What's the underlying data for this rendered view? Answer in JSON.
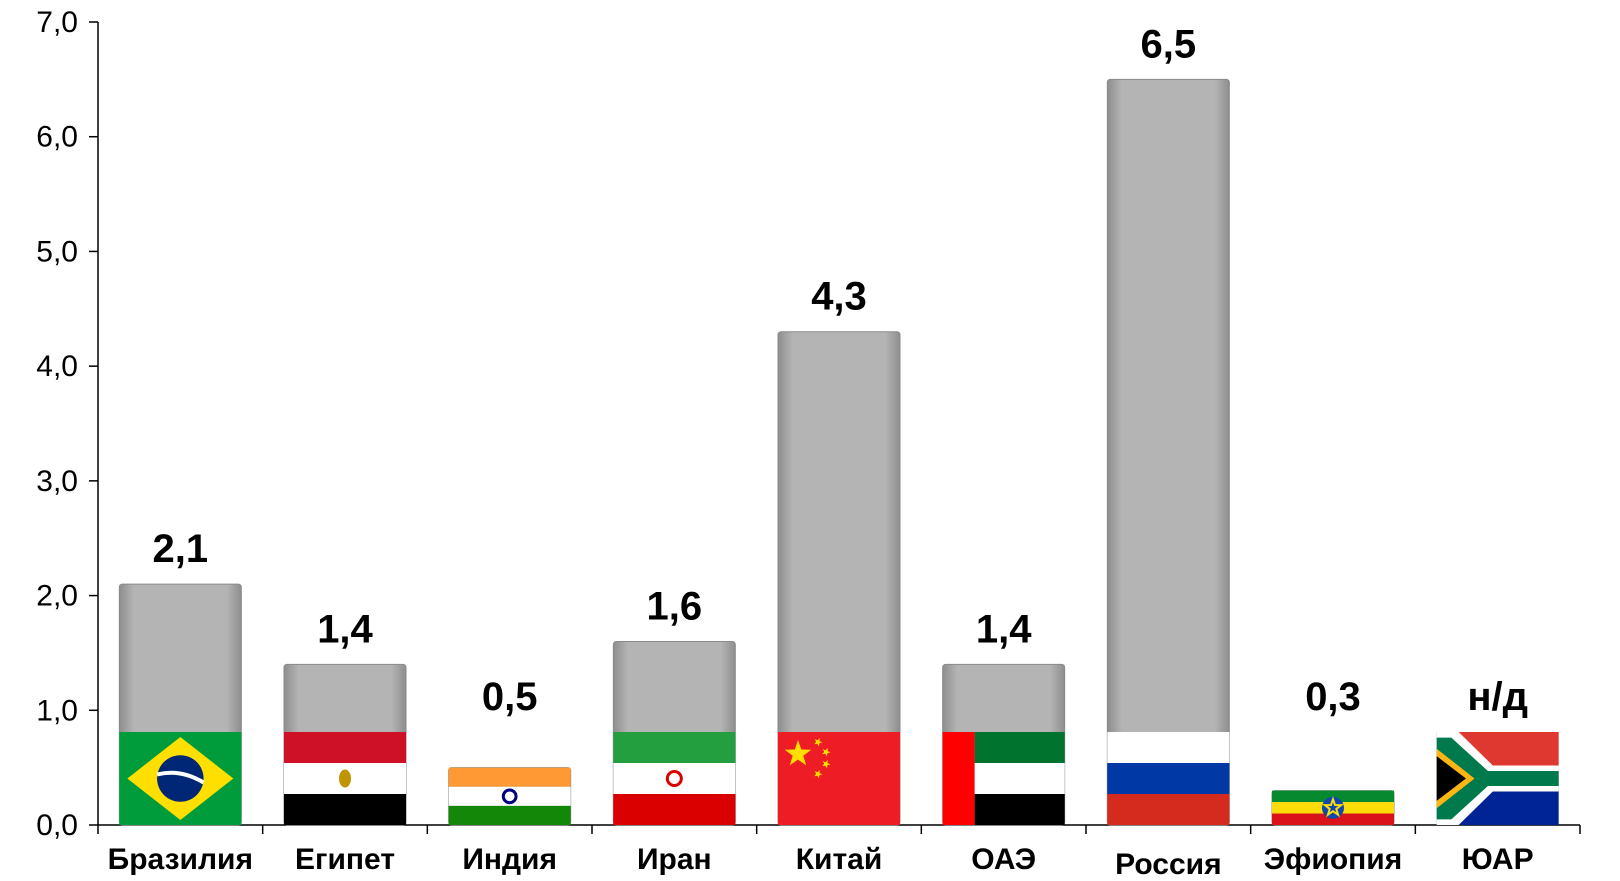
{
  "chart_data": {
    "type": "bar",
    "title": "",
    "xlabel": "",
    "ylabel": "",
    "ylim": [
      0,
      7
    ],
    "yticks": [
      "0,0",
      "1,0",
      "2,0",
      "3,0",
      "4,0",
      "5,0",
      "6,0",
      "7,0"
    ],
    "categories": [
      "Бразилия",
      "Египет",
      "Индия",
      "Иран",
      "Китай",
      "ОАЭ",
      "Россия",
      "Эфиопия",
      "ЮАР"
    ],
    "values": [
      2.1,
      1.4,
      0.5,
      1.6,
      4.3,
      1.4,
      6.5,
      0.3,
      null
    ],
    "labels": [
      "2,1",
      "1,4",
      "0,5",
      "1,6",
      "4,3",
      "1,4",
      "6,5",
      "0,3",
      "н/д"
    ],
    "highlight_category": "Россия",
    "highlight_color": "#e8141b",
    "bar_color": "#a9a9a9",
    "grid": false,
    "flag_icons": [
      "brazil-flag",
      "egypt-flag",
      "india-flag",
      "iran-flag",
      "china-flag",
      "uae-flag",
      "russia-flag",
      "ethiopia-flag",
      "south-africa-flag"
    ]
  }
}
